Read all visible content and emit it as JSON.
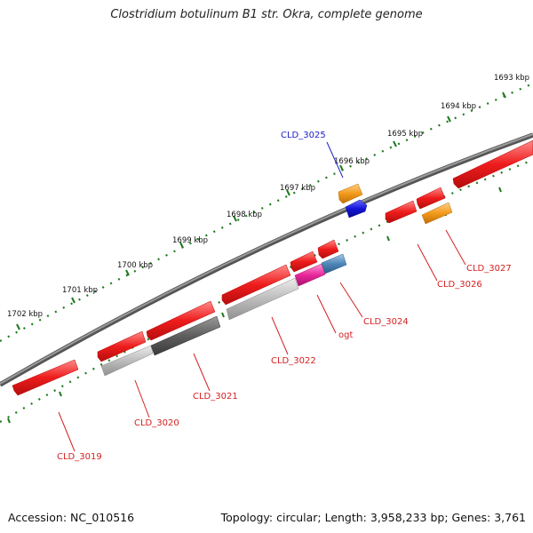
{
  "title": "Clostridium botulinum B1 str. Okra, complete genome",
  "footer": {
    "accession": "Accession: NC_010516",
    "topology": "Topology: circular; Length: 3,958,233 bp; Genes: 3,761"
  },
  "ruler": {
    "labels": [
      "1693 kbp",
      "1694 kbp",
      "1695 kbp",
      "1696 kbp",
      "1697 kbp",
      "1698 kbp",
      "1699 kbp",
      "1700 kbp",
      "1701 kbp",
      "1702 kbp"
    ]
  },
  "colors": {
    "gene_red": "#ee1c1c",
    "gene_orange": "#f39a1a",
    "gene_blue": "#1414d8",
    "gene_steelblue": "#4d86b8",
    "gene_magenta": "#e8279c",
    "gene_gray_light": "#b8b8b8",
    "gene_gray_dark": "#606060",
    "backbone": "#777777",
    "tick_green": "#1d7a1d",
    "label_red": "#d42020",
    "label_blue": "#2020c8"
  },
  "genes": [
    {
      "id": "g3019",
      "color": "gene_red"
    },
    {
      "id": "g3020a",
      "color": "gene_red"
    },
    {
      "id": "g3020b",
      "color": "gene_gray_light"
    },
    {
      "id": "g3021a",
      "color": "gene_red"
    },
    {
      "id": "g3021b",
      "color": "gene_gray_dark"
    },
    {
      "id": "g3022a",
      "color": "gene_red"
    },
    {
      "id": "g3022b",
      "color": "gene_gray_light"
    },
    {
      "id": "gogt_a",
      "color": "gene_red"
    },
    {
      "id": "gogt_b",
      "color": "gene_magenta"
    },
    {
      "id": "g3024a",
      "color": "gene_red"
    },
    {
      "id": "g3024b",
      "color": "gene_steelblue"
    },
    {
      "id": "g3025a",
      "color": "gene_orange"
    },
    {
      "id": "g3025b",
      "color": "gene_blue"
    },
    {
      "id": "g3026a",
      "color": "gene_red"
    },
    {
      "id": "g3026b",
      "color": "gene_red"
    },
    {
      "id": "g3027",
      "color": "gene_orange"
    },
    {
      "id": "g_top_right",
      "color": "gene_red"
    }
  ],
  "gene_labels": [
    "CLD_3019",
    "CLD_3020",
    "CLD_3021",
    "CLD_3022",
    "ogt",
    "CLD_3024",
    "CLD_3025",
    "CLD_3026",
    "CLD_3027"
  ]
}
